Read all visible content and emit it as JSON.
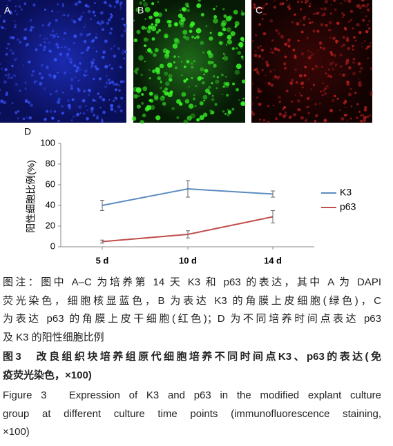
{
  "panels": [
    "A",
    "B",
    "C"
  ],
  "chart_data": {
    "type": "line",
    "panel_label": "D",
    "ylabel": "阳性细胞比例(%)",
    "categories": [
      "5 d",
      "10 d",
      "14 d"
    ],
    "series": [
      {
        "name": "K3",
        "color": "#5b8cc0",
        "values": [
          40,
          56,
          51
        ],
        "errors": [
          5,
          8,
          3
        ]
      },
      {
        "name": "p63",
        "color": "#c0504d",
        "values": [
          5,
          12,
          29
        ],
        "errors": [
          1.5,
          3.5,
          6
        ]
      }
    ],
    "ylim": [
      0,
      100
    ],
    "yticks": [
      0,
      20,
      40,
      60,
      80,
      100
    ],
    "grid": false,
    "legend": "right"
  },
  "caption": {
    "note": [
      "图注：图中 A–C 为培养第 14 天 K3 和 p63 的表达，其中 A 为 DAPI",
      "荧光染色，细胞核显蓝色，B 为表达 K3 的角膜上皮细胞(绿色)，C",
      "为表达 p63 的角膜上皮干细胞(红色)；D 为不同培养时间点表达 p63",
      "及 K3 的阳性细胞比例"
    ],
    "title_cn": [
      "图3　改良组织块培养组原代细胞培养不同时间点K3、p63的表达(免",
      "疫荧光染色，×100)"
    ],
    "title_en": [
      "Figure 3　Expression of K3 and p63 in the modified explant culture",
      "group at different culture time points (immunofluorescence staining,",
      "×100)"
    ]
  }
}
